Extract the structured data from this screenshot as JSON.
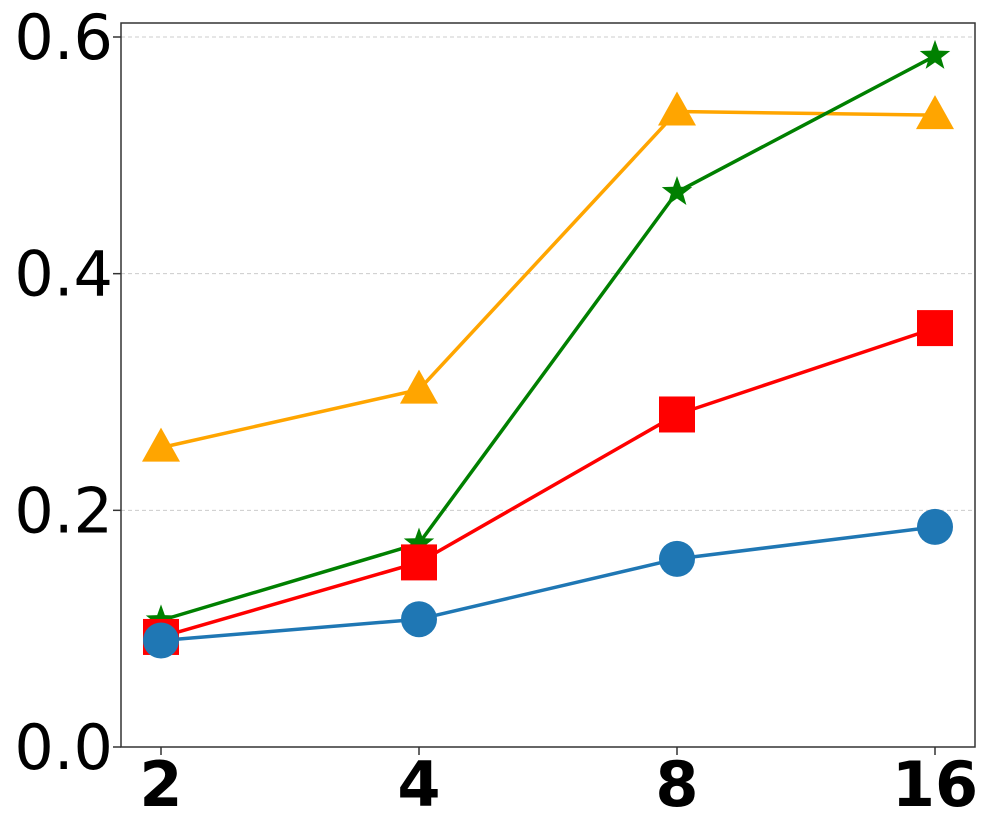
{
  "chart_data": {
    "type": "line",
    "title": "",
    "xlabel": "",
    "ylabel": "",
    "categories": [
      "2",
      "4",
      "8",
      "16"
    ],
    "ylim": [
      0.0,
      0.6
    ],
    "yticks": [
      "0.0",
      "0.2",
      "0.4",
      "0.6"
    ],
    "grid": "horizontal dashed",
    "series": [
      {
        "color": "#ffa500",
        "marker": "triangle",
        "values": [
          0.253,
          0.302,
          0.537,
          0.534
        ]
      },
      {
        "color": "#008000",
        "marker": "star",
        "values": [
          0.107,
          0.172,
          0.469,
          0.584
        ]
      },
      {
        "color": "#ff0000",
        "marker": "square",
        "values": [
          0.093,
          0.156,
          0.281,
          0.354
        ]
      },
      {
        "color": "#1f77b4",
        "marker": "circle",
        "values": [
          0.09,
          0.108,
          0.159,
          0.186
        ]
      }
    ]
  }
}
